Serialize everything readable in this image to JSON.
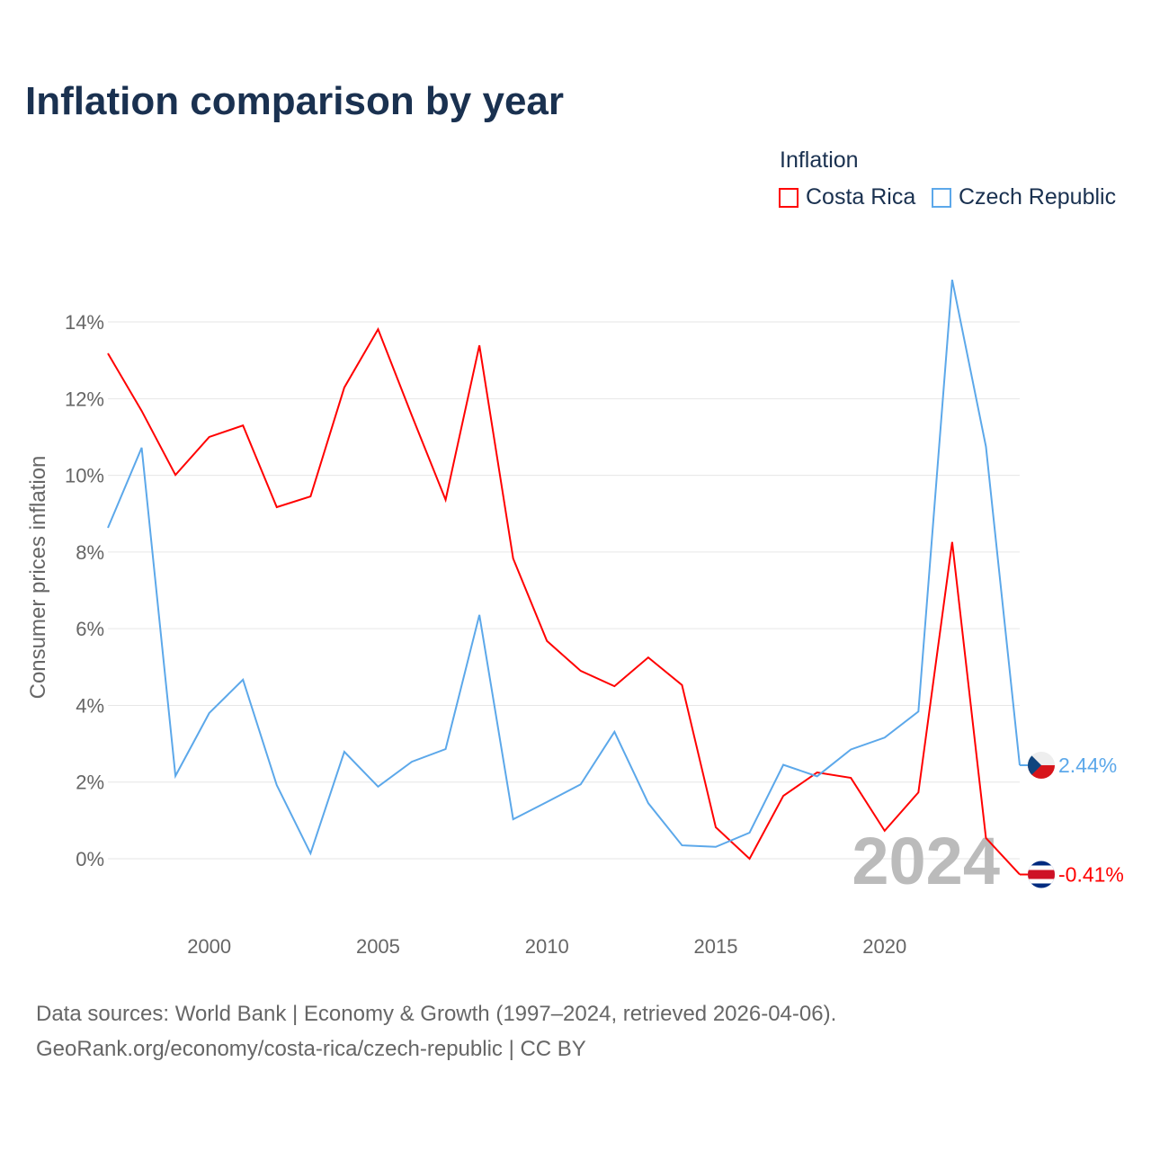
{
  "chart_data": {
    "type": "line",
    "title": "Inflation comparison by year",
    "ylabel": "Consumer prices inflation",
    "legend_title": "Inflation",
    "legend_placement": "top-right",
    "x": [
      1997,
      1998,
      1999,
      2000,
      2001,
      2002,
      2003,
      2004,
      2005,
      2006,
      2007,
      2008,
      2009,
      2010,
      2011,
      2012,
      2013,
      2014,
      2015,
      2016,
      2017,
      2018,
      2019,
      2020,
      2021,
      2022,
      2023,
      2024
    ],
    "xlim": [
      1997,
      2024
    ],
    "ylim": [
      -1.5,
      15.5
    ],
    "xticks": [
      2000,
      2005,
      2010,
      2015,
      2020
    ],
    "yticks": [
      0,
      2,
      4,
      6,
      8,
      10,
      12,
      14
    ],
    "ytick_labels": [
      "0%",
      "2%",
      "4%",
      "6%",
      "8%",
      "10%",
      "12%",
      "14%"
    ],
    "series": [
      {
        "name": "Costa Rica",
        "color": "#ff0000",
        "end_label": "-0.41%",
        "values": [
          13.18,
          11.68,
          10.01,
          11.0,
          11.3,
          9.17,
          9.45,
          12.29,
          13.81,
          11.56,
          9.36,
          13.39,
          7.83,
          5.68,
          4.9,
          4.5,
          5.25,
          4.53,
          0.82,
          0.0,
          1.64,
          2.25,
          2.11,
          0.73,
          1.73,
          8.26,
          0.54,
          -0.41
        ]
      },
      {
        "name": "Czech Republic",
        "color": "#5ca8ea",
        "end_label": "2.44%",
        "values": [
          8.63,
          10.72,
          2.16,
          3.8,
          4.67,
          1.92,
          0.14,
          2.79,
          1.88,
          2.53,
          2.86,
          6.36,
          1.03,
          1.48,
          1.94,
          3.31,
          1.45,
          0.35,
          0.31,
          0.68,
          2.45,
          2.15,
          2.85,
          3.16,
          3.84,
          15.1,
          10.75,
          2.44
        ]
      }
    ],
    "year_watermark": "2024"
  },
  "source_lines": [
    "Data sources: World Bank | Economy & Growth (1997–2024, retrieved 2026-04-06).",
    "GeoRank.org/economy/costa-rica/czech-republic | CC BY"
  ]
}
